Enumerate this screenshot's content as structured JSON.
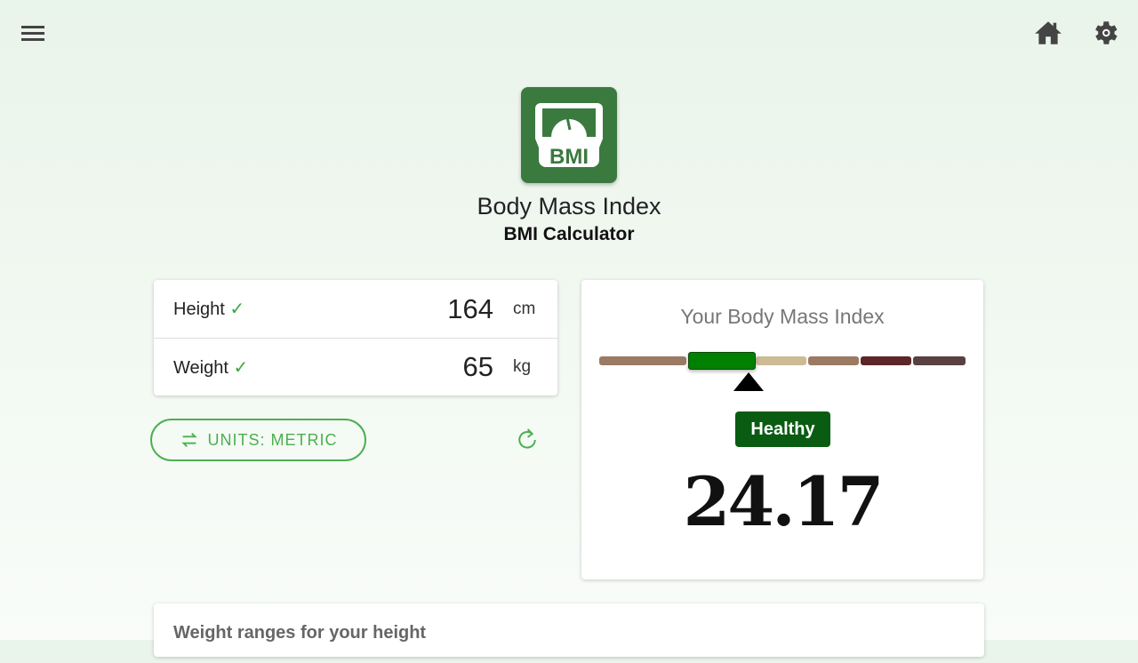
{
  "header": {
    "menu_icon": "hamburger-icon",
    "home_icon": "home-icon",
    "settings_icon": "gear-icon"
  },
  "app": {
    "logo_text": "BMI",
    "title": "Body Mass Index",
    "subtitle": "BMI Calculator"
  },
  "inputs": [
    {
      "label": "Height",
      "check": "✓",
      "value": "164",
      "unit": "cm"
    },
    {
      "label": "Weight",
      "check": "✓",
      "value": "65",
      "unit": "kg"
    }
  ],
  "units_button": {
    "label": "UNITS: METRIC",
    "icon": "swap-icon"
  },
  "reset_icon": "refresh-icon",
  "result": {
    "title": "Your Body Mass Index",
    "category": "Healthy",
    "value": "24.17",
    "scale_colors": [
      "#9a7a63",
      "#008000",
      "#cdbb95",
      "#9a7a63",
      "#5e2626",
      "#5a4040"
    ],
    "active_segment": 1
  },
  "ranges": {
    "title": "Weight ranges for your height"
  }
}
